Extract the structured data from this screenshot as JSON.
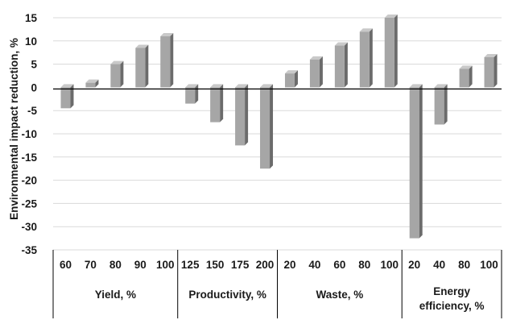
{
  "chart_data": {
    "type": "bar",
    "title": "",
    "xlabel": "",
    "ylabel": "Environmental impact reduction, %",
    "ylim": [
      -35,
      15
    ],
    "yticks": [
      "15",
      "10",
      "5",
      "0",
      "-5",
      "-10",
      "-15",
      "-20",
      "-25",
      "-30",
      "-35"
    ],
    "grid": true,
    "legend": "none",
    "colors": {
      "bar_front": "#a6a6a6",
      "bar_side": "#6b6b6b",
      "bar_top": "#c9c9c9",
      "grid": "#d9d9d9",
      "axis": "#000000"
    },
    "groups": [
      {
        "label": "Yield, %",
        "categories": [
          "60",
          "70",
          "80",
          "90",
          "100"
        ],
        "values": [
          -4.5,
          1,
          5,
          8.5,
          11
        ]
      },
      {
        "label": "Productivity, %",
        "categories": [
          "125",
          "150",
          "175",
          "200"
        ],
        "values": [
          -3.5,
          -7.5,
          -12.5,
          -17.5
        ]
      },
      {
        "label": "Waste, %",
        "categories": [
          "20",
          "40",
          "60",
          "80",
          "100"
        ],
        "values": [
          3,
          6,
          9,
          12,
          15
        ]
      },
      {
        "label": "Energy efficiency, %",
        "label_lines": [
          "Energy",
          "efficiency, %"
        ],
        "categories": [
          "20",
          "40",
          "80",
          "100"
        ],
        "values": [
          -32.5,
          -8,
          4,
          6.5
        ]
      }
    ]
  }
}
